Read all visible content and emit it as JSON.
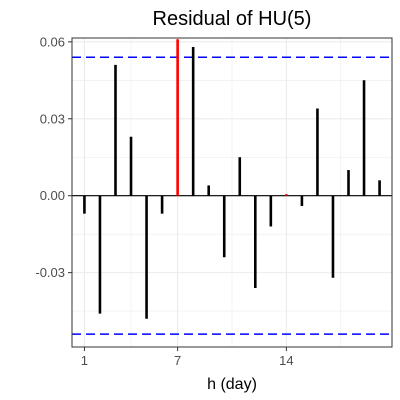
{
  "chart_data": {
    "type": "bar",
    "title": "Residual of HU(5)",
    "xlabel": "h (day)",
    "ylabel": "",
    "x_ticks": [
      1,
      7,
      14
    ],
    "y_ticks": [
      -0.03,
      0.0,
      0.03,
      0.06
    ],
    "y_tick_labels": [
      "-0.03",
      "0.00",
      "0.03",
      "0.06"
    ],
    "xlim": [
      0.2,
      20.8
    ],
    "ylim": [
      -0.059,
      0.0615
    ],
    "grid": true,
    "lags": [
      1,
      2,
      3,
      4,
      5,
      6,
      7,
      8,
      9,
      10,
      11,
      12,
      13,
      14,
      15,
      16,
      17,
      18,
      19,
      20
    ],
    "values": [
      -0.007,
      -0.046,
      0.051,
      0.023,
      -0.048,
      -0.007,
      0.061,
      0.058,
      0.004,
      -0.024,
      0.015,
      -0.036,
      -0.012,
      0.0006,
      -0.004,
      0.034,
      -0.032,
      0.01,
      0.045,
      0.006
    ],
    "highlighted_lags": [
      7,
      14
    ],
    "confidence_bounds": [
      0.054,
      -0.054
    ],
    "colors": {
      "bar": "#000000",
      "highlight": "#ff0000",
      "bound": "#0000ff",
      "zero_line": "#000000",
      "grid": "#ebebeb",
      "panel_border": "#333333"
    }
  }
}
